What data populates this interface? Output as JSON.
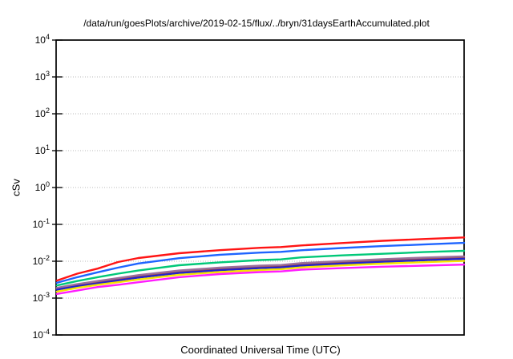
{
  "chart_data": {
    "type": "line",
    "title": "/data/run/goesPlots/archive/2019-02-15/flux/../bryn/31daysEarthAccumulated.plot",
    "xlabel": "Coordinated Universal Time (UTC)",
    "ylabel": "cSv",
    "y_scale": "log10",
    "ylim": [
      0.0001,
      10000
    ],
    "y_tick_exponents": [
      4,
      3,
      2,
      1,
      0,
      -1,
      -2,
      -3,
      -4
    ],
    "x_tick_labels": [],
    "grid": "horizontal-dotted-per-decade",
    "grid_color": "#b8b8b8",
    "legend": "none",
    "border_color": "#000000",
    "background": "#ffffff",
    "x_axis_note": "time axis spans 31 days, no tick labels shown; x given as fraction of axis width",
    "x": [
      0,
      0.05,
      0.1,
      0.15,
      0.2,
      0.3,
      0.4,
      0.5,
      0.55,
      0.6,
      0.7,
      0.8,
      0.9,
      1.0
    ],
    "series": [
      {
        "name": "line-darkred",
        "color": "#a04848",
        "values": [
          0.0018,
          0.0022,
          0.0027,
          0.0033,
          0.0039,
          0.0052,
          0.0062,
          0.0071,
          0.0074,
          0.0083,
          0.0094,
          0.0106,
          0.0118,
          0.0127
        ]
      },
      {
        "name": "line-gray-purple",
        "color": "#9b6f9b",
        "values": [
          0.0019,
          0.0024,
          0.0029,
          0.0035,
          0.0042,
          0.0056,
          0.0067,
          0.0076,
          0.0079,
          0.0089,
          0.0101,
          0.0114,
          0.0126,
          0.0136
        ]
      },
      {
        "name": "line-royal-blue",
        "color": "#2222d0",
        "values": [
          0.0017,
          0.0021,
          0.0025,
          0.003,
          0.0036,
          0.0048,
          0.0057,
          0.0065,
          0.0068,
          0.0076,
          0.0086,
          0.0096,
          0.0106,
          0.0116
        ]
      },
      {
        "name": "line-yellow",
        "color": "#f5e400",
        "values": [
          0.0015,
          0.0019,
          0.0023,
          0.0027,
          0.0032,
          0.0043,
          0.0051,
          0.0058,
          0.0061,
          0.0068,
          0.0077,
          0.0086,
          0.0094,
          0.0102
        ]
      },
      {
        "name": "line-magenta",
        "color": "#ff1cff",
        "values": [
          0.0013,
          0.0016,
          0.002,
          0.0023,
          0.0027,
          0.0037,
          0.0045,
          0.0051,
          0.0053,
          0.0059,
          0.0065,
          0.0071,
          0.0076,
          0.0081
        ]
      },
      {
        "name": "line-spring-green",
        "color": "#00c878",
        "values": [
          0.0022,
          0.0029,
          0.0037,
          0.0046,
          0.0056,
          0.0078,
          0.0093,
          0.0108,
          0.0112,
          0.0127,
          0.0144,
          0.0159,
          0.0177,
          0.0192
        ]
      },
      {
        "name": "line-dodger-blue",
        "color": "#1e64ff",
        "values": [
          0.0026,
          0.0037,
          0.005,
          0.0067,
          0.0087,
          0.0121,
          0.015,
          0.0172,
          0.018,
          0.0199,
          0.0228,
          0.0257,
          0.0284,
          0.0314
        ]
      },
      {
        "name": "line-red",
        "color": "#ff1414",
        "values": [
          0.003,
          0.0046,
          0.0063,
          0.0095,
          0.0122,
          0.0165,
          0.02,
          0.0232,
          0.0243,
          0.0268,
          0.0312,
          0.0358,
          0.04,
          0.0442
        ]
      }
    ]
  }
}
